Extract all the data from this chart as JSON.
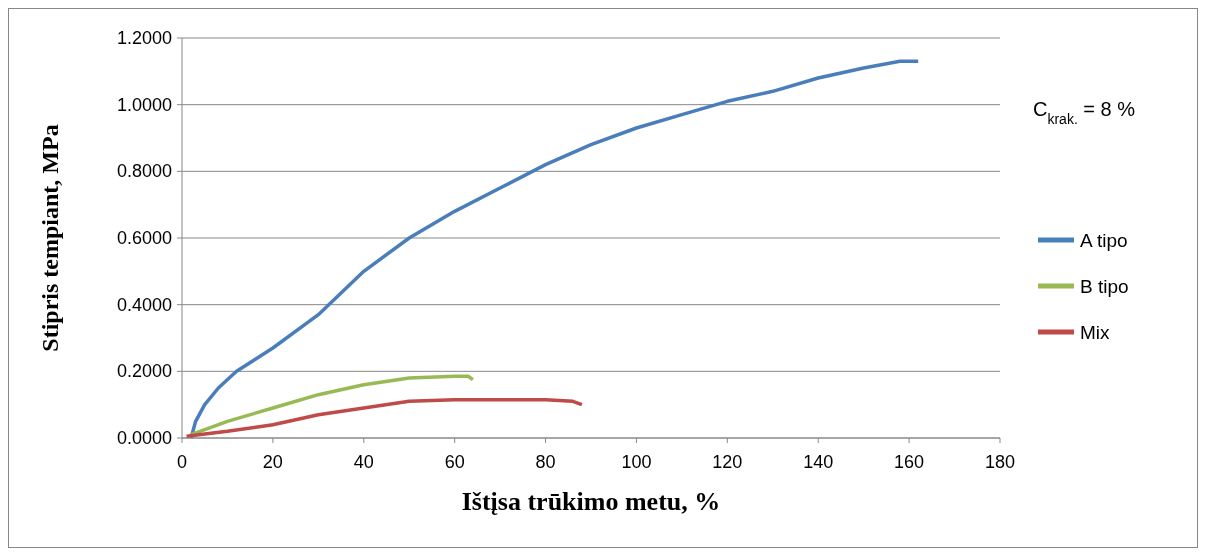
{
  "chart_data": {
    "type": "line",
    "xlabel": "Ištįsa trūkimo metu, %",
    "ylabel": "Stipris tempiant, MPa",
    "annotations": [
      "C$_{krak.}$ = 8 %"
    ],
    "xlim": [
      0,
      180
    ],
    "xticks": [
      0,
      20,
      40,
      60,
      80,
      100,
      120,
      140,
      160,
      180
    ],
    "ylim": [
      0,
      1.2
    ],
    "yticks": [
      {
        "value": 0,
        "label": "0.0000"
      },
      {
        "value": 0.2,
        "label": "0.2000"
      },
      {
        "value": 0.4,
        "label": "0.4000"
      },
      {
        "value": 0.6,
        "label": "0.6000"
      },
      {
        "value": 0.8,
        "label": "0.8000"
      },
      {
        "value": 1,
        "label": "1.0000"
      },
      {
        "value": 1.2,
        "label": "1.2000"
      }
    ],
    "grid": "y",
    "legend": "right",
    "marker": "none",
    "line_style": "solid",
    "series": [
      {
        "name": "A tipo",
        "color": "#4a7ebb",
        "x": [
          2,
          3,
          5,
          8,
          12,
          20,
          30,
          40,
          50,
          60,
          70,
          80,
          90,
          100,
          110,
          120,
          130,
          140,
          150,
          158,
          162
        ],
        "values": [
          0,
          0.05,
          0.1,
          0.15,
          0.2,
          0.27,
          0.37,
          0.5,
          0.6,
          0.68,
          0.75,
          0.82,
          0.88,
          0.93,
          0.97,
          1.01,
          1.04,
          1.08,
          1.11,
          1.13,
          1.13
        ]
      },
      {
        "name": "B tipo",
        "color": "#98b954",
        "x": [
          2,
          10,
          20,
          30,
          40,
          50,
          60,
          63,
          64
        ],
        "values": [
          0.01,
          0.05,
          0.09,
          0.13,
          0.16,
          0.18,
          0.185,
          0.185,
          0.175
        ]
      },
      {
        "name": "Mix",
        "color": "#be4b48",
        "x": [
          1,
          10,
          20,
          30,
          40,
          50,
          60,
          70,
          80,
          86,
          88
        ],
        "values": [
          0.005,
          0.02,
          0.04,
          0.07,
          0.09,
          0.11,
          0.115,
          0.115,
          0.115,
          0.11,
          0.1
        ]
      }
    ]
  }
}
